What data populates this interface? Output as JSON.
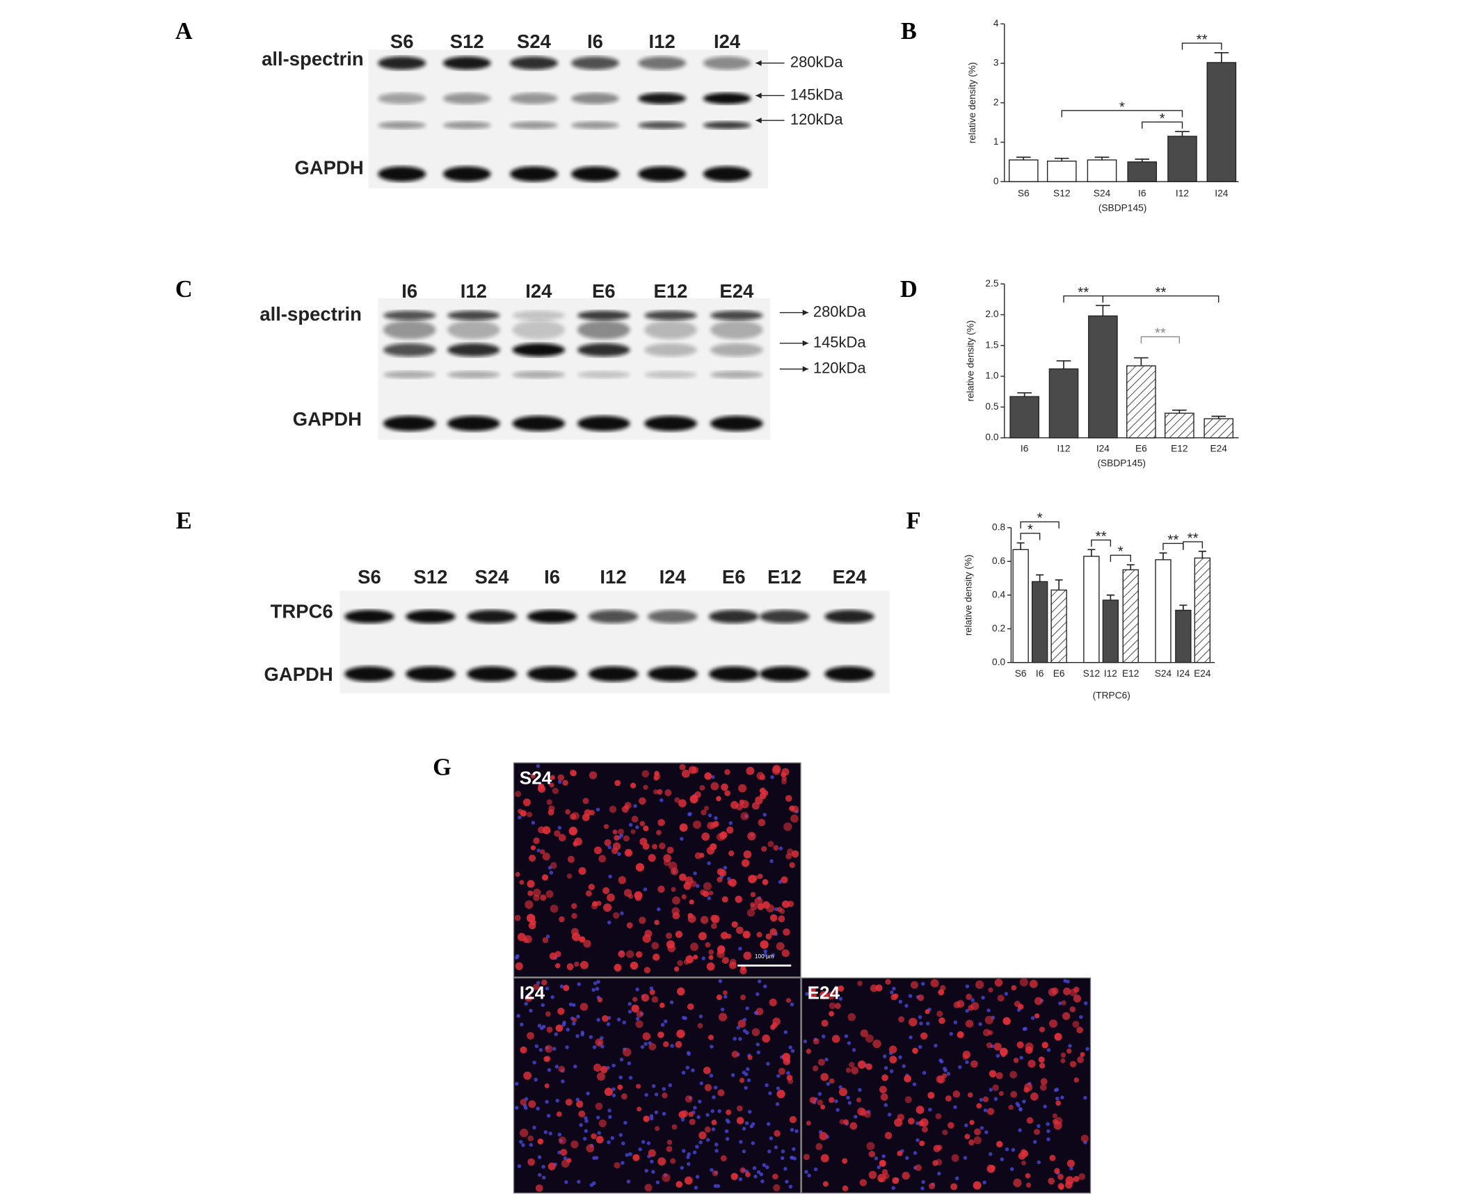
{
  "panel_labels": [
    "A",
    "B",
    "C",
    "D",
    "E",
    "F",
    "G"
  ],
  "blots": [
    {
      "lanes": [
        "S6",
        "S12",
        "S24",
        "I6",
        "I12",
        "I24"
      ],
      "rows": [
        "all-spectrin",
        "GAPDH"
      ],
      "markers": [
        "280kDa",
        "145kDa",
        "120kDa"
      ]
    },
    {
      "lanes": [
        "I6",
        "I12",
        "I24",
        "E6",
        "E12",
        "E24"
      ],
      "rows": [
        "all-spectrin",
        "GAPDH"
      ],
      "markers": [
        "280kDa",
        "145kDa",
        "120kDa"
      ]
    },
    {
      "lanes": [
        "S6",
        "S12",
        "S24",
        "I6",
        "I12",
        "I24",
        "E6",
        "E12",
        "E24"
      ],
      "rows": [
        "TRPC6",
        "GAPDH"
      ],
      "markers": []
    }
  ],
  "micrographs": {
    "labels": [
      "S24",
      "I24",
      "E24"
    ],
    "scale_bar": "100 µm"
  },
  "chart_data": [
    {
      "type": "bar",
      "ylabel": "relative density (%)",
      "xlabel": "(SBDP145)",
      "categories": [
        "S6",
        "S12",
        "S24",
        "I6",
        "I12",
        "I24"
      ],
      "values": [
        0.55,
        0.52,
        0.55,
        0.5,
        1.15,
        3.02
      ],
      "errors": [
        0.07,
        0.07,
        0.07,
        0.07,
        0.12,
        0.25
      ],
      "colors": [
        "#ffffff",
        "#ffffff",
        "#ffffff",
        "#4a4a4a",
        "#4a4a4a",
        "#4a4a4a"
      ],
      "hatched": [
        false,
        false,
        false,
        false,
        false,
        false
      ],
      "ylim": [
        0,
        4
      ],
      "yticks": [
        0,
        1,
        2,
        3,
        4
      ],
      "annotations": [
        {
          "text": "*",
          "between": [
            "I6",
            "I12"
          ]
        },
        {
          "text": "*",
          "between": [
            "S12",
            "I12"
          ]
        },
        {
          "text": "**",
          "between": [
            "I12",
            "I24"
          ]
        }
      ]
    },
    {
      "type": "bar",
      "ylabel": "relative density (%)",
      "xlabel": "(SBDP145)",
      "categories": [
        "I6",
        "I12",
        "I24",
        "E6",
        "E12",
        "E24"
      ],
      "values": [
        0.67,
        1.12,
        1.98,
        1.17,
        0.4,
        0.31
      ],
      "errors": [
        0.06,
        0.13,
        0.17,
        0.13,
        0.05,
        0.04
      ],
      "colors": [
        "#4a4a4a",
        "#4a4a4a",
        "#4a4a4a",
        "#ffffff",
        "#ffffff",
        "#ffffff"
      ],
      "hatched": [
        false,
        false,
        false,
        true,
        true,
        true
      ],
      "ylim": [
        0,
        2.5
      ],
      "yticks": [
        {
          "value": 0,
          "label": "0.0"
        },
        0.5,
        {
          "value": 1,
          "label": "1.0"
        },
        1.5,
        {
          "value": 2,
          "label": "2.0"
        },
        2.5
      ],
      "annotations": [
        {
          "text": "**",
          "between": [
            "I12",
            "I24"
          ]
        },
        {
          "text": "**",
          "between": [
            "I24",
            "E24"
          ]
        },
        {
          "text": "**",
          "between": [
            "E6",
            "E12"
          ],
          "color": "#888888"
        }
      ]
    },
    {
      "type": "bar",
      "ylabel": "relative density (%)",
      "xlabel": "(TRPC6)",
      "categories": [
        "S6",
        "I6",
        "E6",
        "S12",
        "I12",
        "E12",
        "S24",
        "I24",
        "E24"
      ],
      "values": [
        0.67,
        0.48,
        0.43,
        0.63,
        0.37,
        0.55,
        0.61,
        0.31,
        0.62
      ],
      "errors": [
        0.04,
        0.04,
        0.06,
        0.04,
        0.03,
        0.03,
        0.04,
        0.03,
        0.04
      ],
      "colors": [
        "#ffffff",
        "#4a4a4a",
        "#ffffff",
        "#ffffff",
        "#4a4a4a",
        "#ffffff",
        "#ffffff",
        "#4a4a4a",
        "#ffffff"
      ],
      "hatched": [
        false,
        false,
        true,
        false,
        false,
        true,
        false,
        false,
        true
      ],
      "ylim": [
        0,
        0.8
      ],
      "yticks": [
        {
          "value": 0,
          "label": "0.0"
        },
        0.2,
        0.4,
        0.6,
        0.8
      ],
      "annotations": [
        {
          "text": "*",
          "between": [
            "S6",
            "I6"
          ]
        },
        {
          "text": "*",
          "between": [
            "S6",
            "E6"
          ]
        },
        {
          "text": "**",
          "between": [
            "S12",
            "I12"
          ]
        },
        {
          "text": "*",
          "between": [
            "I12",
            "E12"
          ]
        },
        {
          "text": "**",
          "between": [
            "S24",
            "I24"
          ]
        },
        {
          "text": "**",
          "between": [
            "I24",
            "E24"
          ]
        }
      ]
    }
  ]
}
